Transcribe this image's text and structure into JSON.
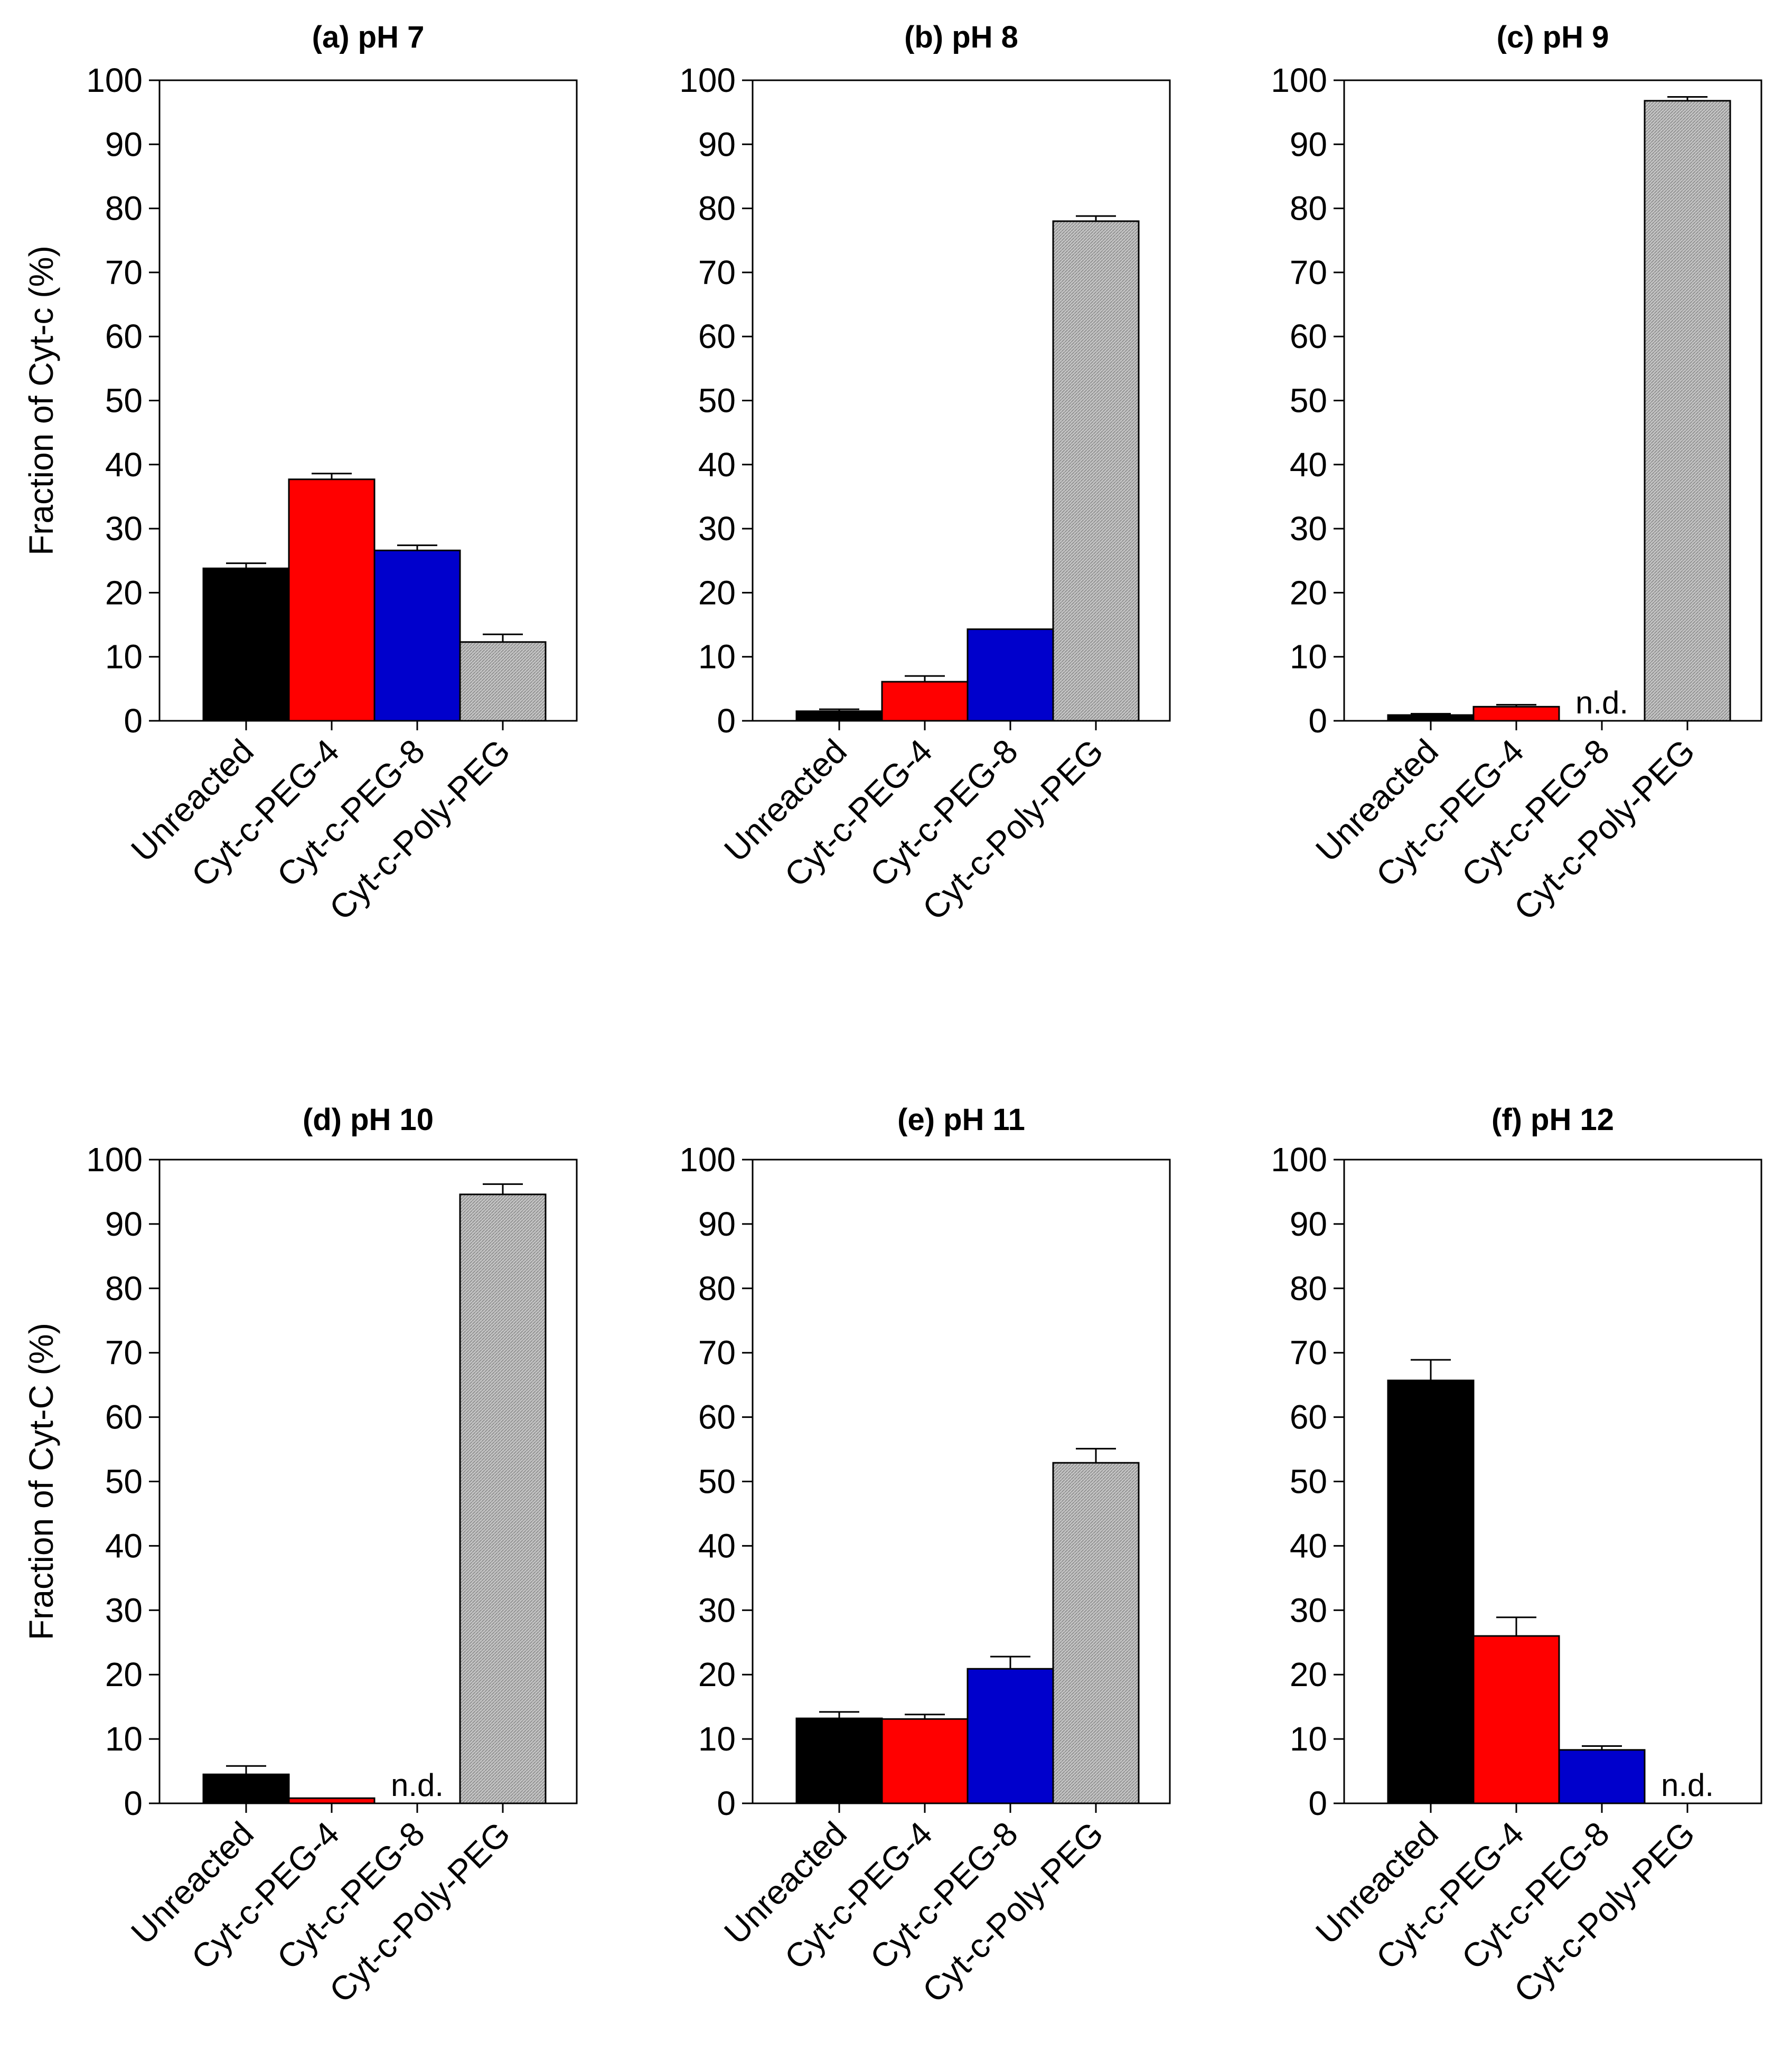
{
  "figure": {
    "colors": {
      "Unreacted": "#000000",
      "Cyt-c-PEG-4": "#ff0000",
      "Cyt-c-PEG-8": "#0000cc",
      "Cyt-c-Poly-PEG": "#b4b4b4"
    }
  },
  "chart_data": [
    {
      "type": "bar",
      "title": "(a) pH 7",
      "ylabel": "Fraction of Cyt-c (%)",
      "ylim": [
        0,
        100
      ],
      "yticks": [
        0,
        10,
        20,
        30,
        40,
        50,
        60,
        70,
        80,
        90,
        100
      ],
      "categories": [
        "Unreacted",
        "Cyt-c-PEG-4",
        "Cyt-c-PEG-8",
        "Cyt-c-Poly-PEG"
      ],
      "values": [
        23.8,
        37.7,
        26.6,
        12.3
      ],
      "errors": [
        0.8,
        0.9,
        0.8,
        1.2
      ],
      "annotations": []
    },
    {
      "type": "bar",
      "title": "(b) pH 8",
      "ylabel": "",
      "ylim": [
        0,
        100
      ],
      "yticks": [
        0,
        10,
        20,
        30,
        40,
        50,
        60,
        70,
        80,
        90,
        100
      ],
      "categories": [
        "Unreacted",
        "Cyt-c-PEG-4",
        "Cyt-c-PEG-8",
        "Cyt-c-Poly-PEG"
      ],
      "values": [
        1.5,
        6.1,
        14.3,
        78.0
      ],
      "errors": [
        0.3,
        0.9,
        0.0,
        0.8
      ],
      "annotations": []
    },
    {
      "type": "bar",
      "title": "(c) pH 9",
      "ylabel": "",
      "ylim": [
        0,
        100
      ],
      "yticks": [
        0,
        10,
        20,
        30,
        40,
        50,
        60,
        70,
        80,
        90,
        100
      ],
      "categories": [
        "Unreacted",
        "Cyt-c-PEG-4",
        "Cyt-c-PEG-8",
        "Cyt-c-Poly-PEG"
      ],
      "values": [
        0.9,
        2.2,
        null,
        96.8
      ],
      "errors": [
        0.2,
        0.3,
        0,
        0.6
      ],
      "annotations": [
        {
          "category": "Cyt-c-PEG-8",
          "text": "n.d."
        }
      ]
    },
    {
      "type": "bar",
      "title": "(d) pH 10",
      "ylabel": "Fraction of Cyt-C (%)",
      "ylim": [
        0,
        100
      ],
      "yticks": [
        0,
        10,
        20,
        30,
        40,
        50,
        60,
        70,
        80,
        90,
        100
      ],
      "categories": [
        "Unreacted",
        "Cyt-c-PEG-4",
        "Cyt-c-PEG-8",
        "Cyt-c-Poly-PEG"
      ],
      "values": [
        4.5,
        0.8,
        null,
        94.6
      ],
      "errors": [
        1.3,
        0.0,
        0,
        1.6
      ],
      "annotations": [
        {
          "category": "Cyt-c-PEG-8",
          "text": "n.d."
        }
      ]
    },
    {
      "type": "bar",
      "title": "(e) pH 11",
      "ylabel": "",
      "ylim": [
        0,
        100
      ],
      "yticks": [
        0,
        10,
        20,
        30,
        40,
        50,
        60,
        70,
        80,
        90,
        100
      ],
      "categories": [
        "Unreacted",
        "Cyt-c-PEG-4",
        "Cyt-c-PEG-8",
        "Cyt-c-Poly-PEG"
      ],
      "values": [
        13.2,
        13.1,
        20.9,
        52.9
      ],
      "errors": [
        1.0,
        0.7,
        1.9,
        2.2
      ],
      "annotations": []
    },
    {
      "type": "bar",
      "title": "(f) pH 12",
      "ylabel": "",
      "ylim": [
        0,
        100
      ],
      "yticks": [
        0,
        10,
        20,
        30,
        40,
        50,
        60,
        70,
        80,
        90,
        100
      ],
      "categories": [
        "Unreacted",
        "Cyt-c-PEG-4",
        "Cyt-c-PEG-8",
        "Cyt-c-Poly-PEG"
      ],
      "values": [
        65.7,
        26.0,
        8.3,
        null
      ],
      "errors": [
        3.2,
        2.9,
        0.6,
        0
      ],
      "annotations": [
        {
          "category": "Cyt-c-Poly-PEG",
          "text": "n.d."
        }
      ]
    }
  ]
}
